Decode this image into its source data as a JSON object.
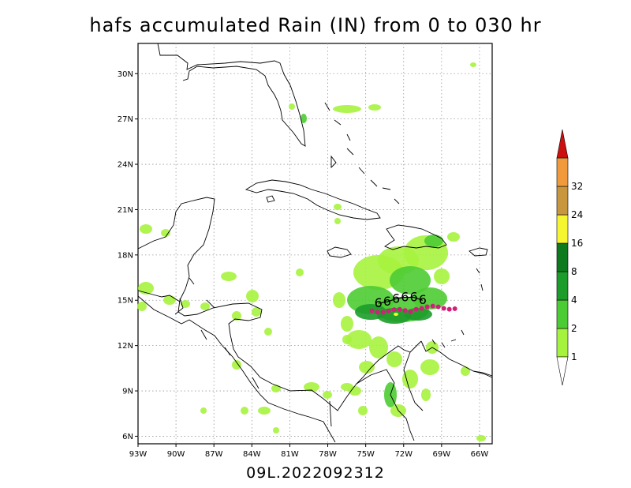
{
  "title": "hafs accumulated Rain (IN) from 0 to 030 hr",
  "subtitle": "09L.2022092312",
  "map": {
    "lon_range": [
      -93,
      -65
    ],
    "lat_range": [
      5.5,
      32
    ],
    "lon_ticks": [
      "93W",
      "90W",
      "87W",
      "84W",
      "81W",
      "78W",
      "75W",
      "72W",
      "69W",
      "66W"
    ],
    "lat_ticks": [
      "6N",
      "9N",
      "12N",
      "15N",
      "18N",
      "21N",
      "24N",
      "27N",
      "30N"
    ],
    "grid": true
  },
  "colorbar": {
    "levels": [
      "1",
      "2",
      "4",
      "8",
      "16",
      "24",
      "32"
    ],
    "colors": [
      "#a6f33e",
      "#4ccc33",
      "#1c9c2a",
      "#0e7a1e",
      "#f6f630",
      "#c8963c",
      "#f09a3c",
      "#cc1010"
    ]
  },
  "storm_track": {
    "symbol": "6",
    "points": [
      [
        -74.0,
        14.8
      ],
      [
        -73.3,
        14.9
      ],
      [
        -72.6,
        15.1
      ],
      [
        -71.9,
        15.2
      ],
      [
        -71.2,
        15.2
      ],
      [
        -70.5,
        15.0
      ]
    ]
  }
}
